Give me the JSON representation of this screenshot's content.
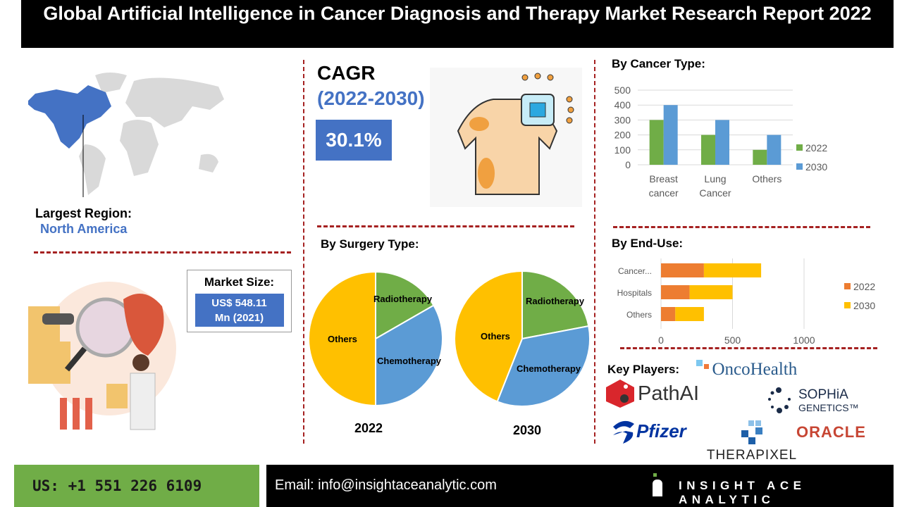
{
  "title": "Global Artificial Intelligence in Cancer Diagnosis and Therapy Market Research Report 2022",
  "region": {
    "label": "Largest Region:",
    "value": "North America"
  },
  "cagr": {
    "label": "CAGR",
    "period": "(2022-2030)",
    "value": "30.1%"
  },
  "market_size": {
    "label": "Market Size:",
    "value_line1": "US$ 548.11",
    "value_line2": "Mn (2021)"
  },
  "colors": {
    "accent_blue": "#4472C4",
    "divider_red": "#a52121",
    "green": "#70AD47",
    "orange": "#ED7D31",
    "yellow": "#FFC000",
    "light_blue": "#5B9BD5"
  },
  "chart_data": [
    {
      "type": "bar",
      "title": "By Cancer Type:",
      "categories": [
        "Breast cancer",
        "Lung Cancer",
        "Others"
      ],
      "series": [
        {
          "name": "2022",
          "values": [
            300,
            200,
            100
          ],
          "color": "#70AD47"
        },
        {
          "name": "2030",
          "values": [
            400,
            300,
            200
          ],
          "color": "#5B9BD5"
        }
      ],
      "yticks": [
        "0",
        "100",
        "200",
        "300",
        "400",
        "500"
      ],
      "ylim": [
        0,
        500
      ],
      "grid": true,
      "legend": "right"
    },
    {
      "type": "bar",
      "orientation": "horizontal-stacked",
      "title": "By End-Use:",
      "categories": [
        "Cancer...",
        "Hospitals",
        "Others"
      ],
      "series": [
        {
          "name": "2022",
          "values": [
            300,
            200,
            100
          ],
          "color": "#ED7D31"
        },
        {
          "name": "2030",
          "values": [
            400,
            300,
            200
          ],
          "color": "#FFC000"
        }
      ],
      "xticks": [
        "0",
        "500",
        "1000"
      ],
      "xlim": [
        0,
        1000
      ],
      "grid": true,
      "legend": "right"
    },
    {
      "type": "pie",
      "title": "By Surgery Type:",
      "caption": "2022",
      "slices": [
        {
          "label": "Radiotherapy",
          "value": 16.7,
          "color": "#70AD47"
        },
        {
          "label": "Chemotherapy",
          "value": 33.3,
          "color": "#5B9BD5"
        },
        {
          "label": "Others",
          "value": 50,
          "color": "#FFC000"
        }
      ]
    },
    {
      "type": "pie",
      "caption": "2030",
      "slices": [
        {
          "label": "Radiotherapy",
          "value": 22,
          "color": "#70AD47"
        },
        {
          "label": "Chemotherapy",
          "value": 34,
          "color": "#5B9BD5"
        },
        {
          "label": "Others",
          "value": 44,
          "color": "#FFC000"
        }
      ]
    }
  ],
  "key_players": {
    "label": "Key Players:",
    "logos": [
      "OncoHealth",
      "PathAI",
      "SOPHiA",
      "GENETICS™",
      "Pfizer",
      "THERAPIXEL",
      "ORACLE"
    ]
  },
  "footer": {
    "phone": "US: +1 551 226 6109",
    "email": "Email: info@insightaceanalytic.com",
    "brand": "INSIGHT ACE ANALYTIC"
  }
}
